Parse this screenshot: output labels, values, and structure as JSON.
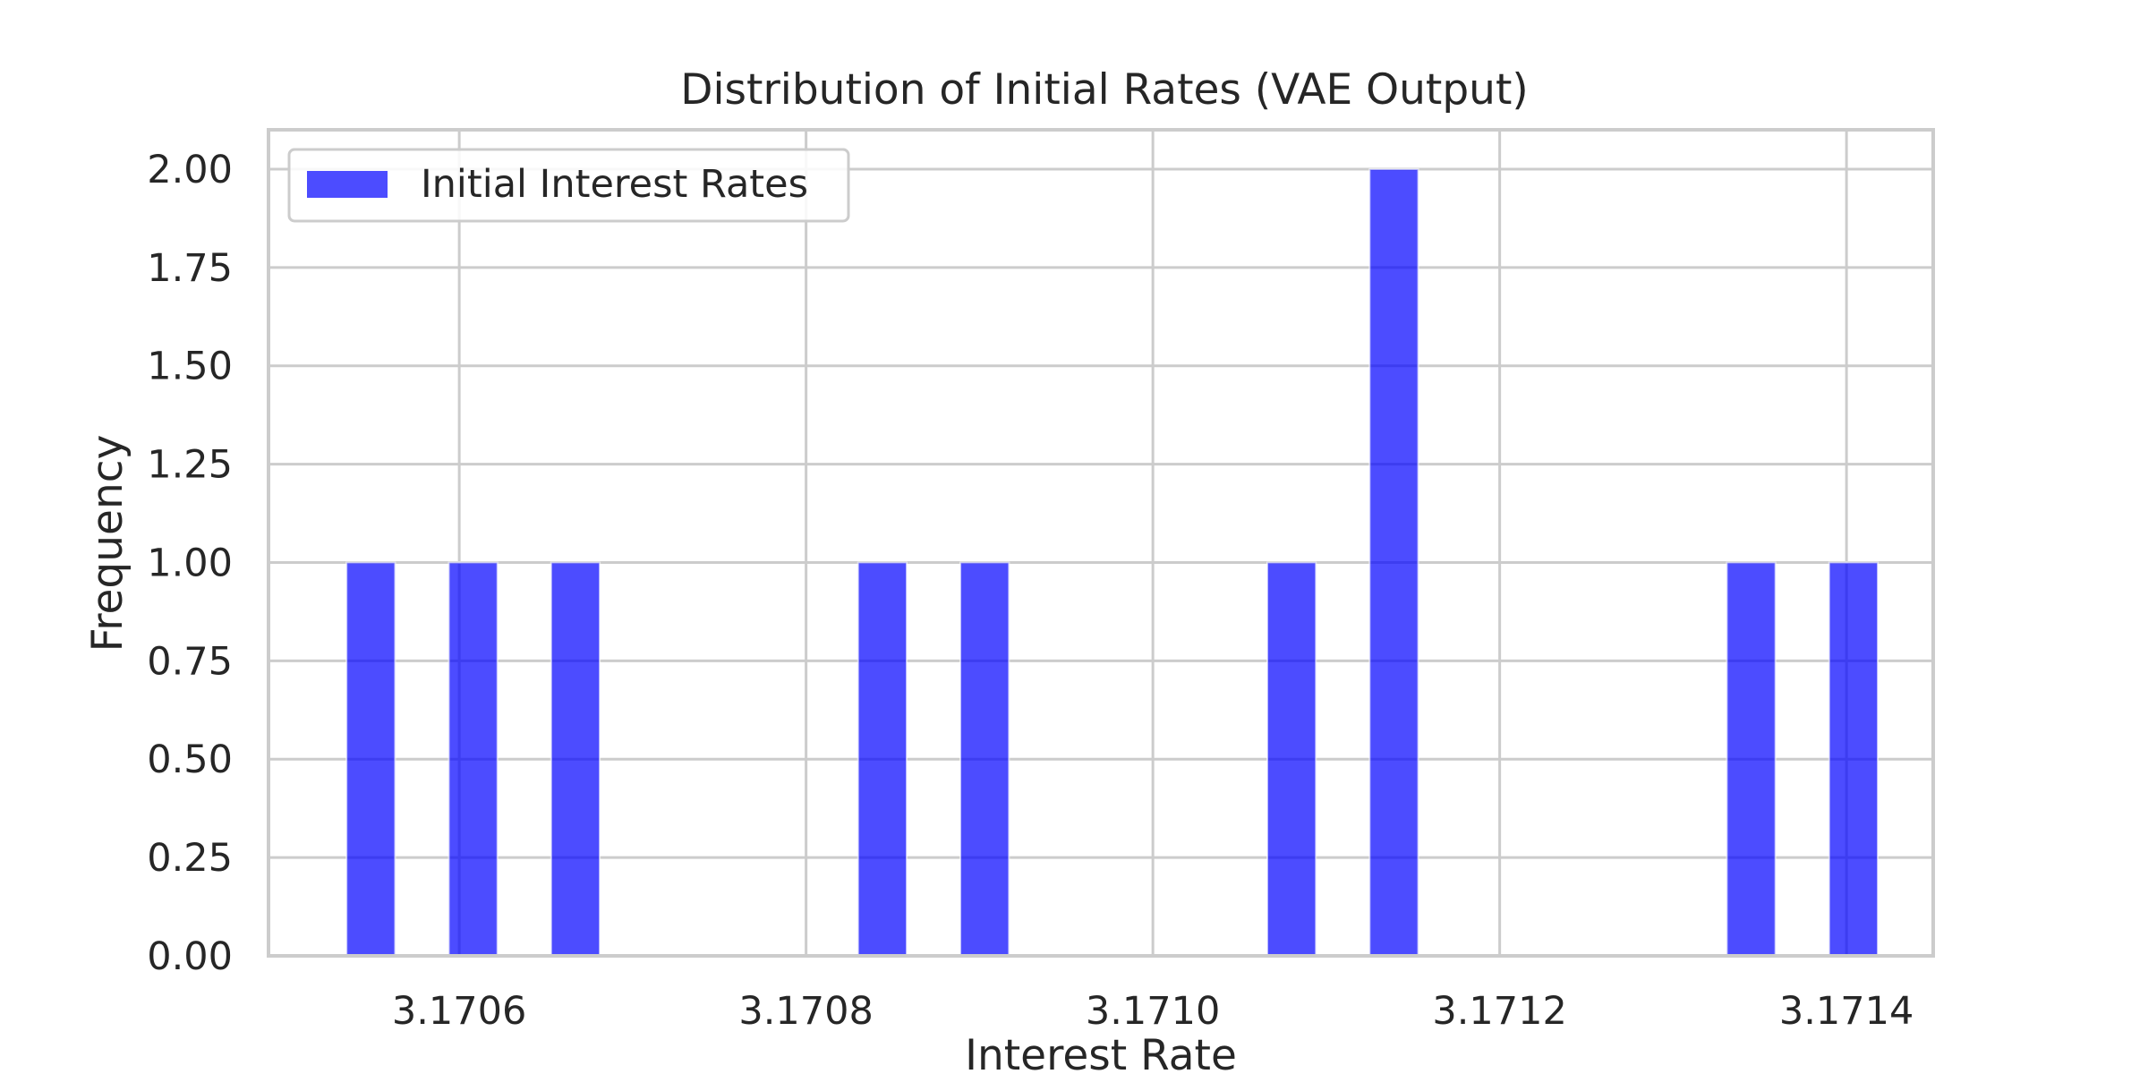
{
  "chart_data": {
    "type": "bar",
    "title": "Distribution of Initial Rates (VAE Output)",
    "xlabel": "Interest Rate",
    "ylabel": "Frequency",
    "xlim": [
      3.17049,
      3.17145
    ],
    "ylim": [
      0,
      2.1
    ],
    "xticks": [
      3.1706,
      3.1708,
      3.171,
      3.1712,
      3.1714
    ],
    "xtick_labels": [
      "3.1706",
      "3.1708",
      "3.1710",
      "3.1712",
      "3.1714"
    ],
    "yticks": [
      0,
      0.25,
      0.5,
      0.75,
      1.0,
      1.25,
      1.5,
      1.75,
      2.0
    ],
    "ytick_labels": [
      "0.00",
      "0.25",
      "0.50",
      "0.75",
      "1.00",
      "1.25",
      "1.50",
      "1.75",
      "2.00"
    ],
    "grid": true,
    "legend_position": "top-left",
    "series": [
      {
        "name": "Initial Interest Rates",
        "color": "#0000ff",
        "bars": [
          {
            "x0": 3.170535,
            "x1": 3.170563,
            "value": 1
          },
          {
            "x0": 3.170594,
            "x1": 3.170622,
            "value": 1
          },
          {
            "x0": 3.170653,
            "x1": 3.170681,
            "value": 1
          },
          {
            "x0": 3.17083,
            "x1": 3.170858,
            "value": 1
          },
          {
            "x0": 3.170889,
            "x1": 3.170917,
            "value": 1
          },
          {
            "x0": 3.171066,
            "x1": 3.171094,
            "value": 1
          },
          {
            "x0": 3.171125,
            "x1": 3.171153,
            "value": 2
          },
          {
            "x0": 3.171331,
            "x1": 3.171359,
            "value": 1
          },
          {
            "x0": 3.17139,
            "x1": 3.171418,
            "value": 1
          }
        ]
      }
    ]
  }
}
